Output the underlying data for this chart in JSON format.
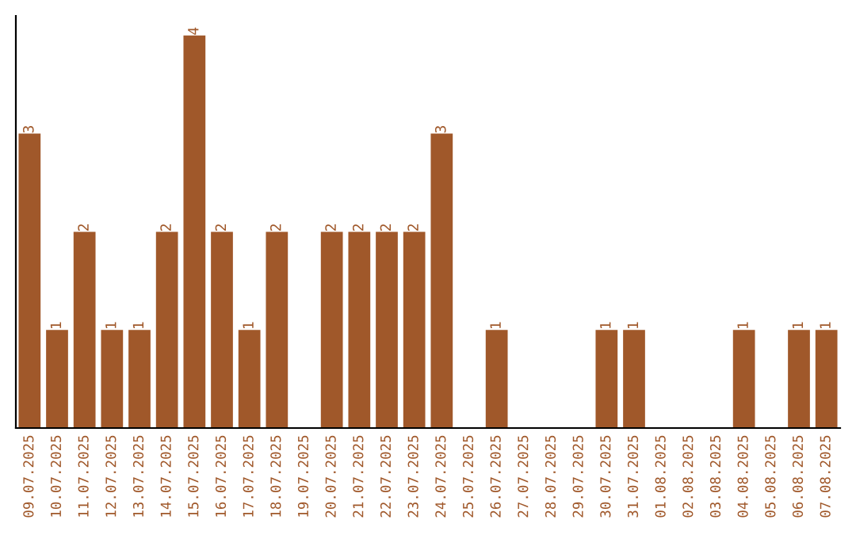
{
  "chart_data": {
    "type": "bar",
    "categories": [
      "09.07.2025",
      "10.07.2025",
      "11.07.2025",
      "12.07.2025",
      "13.07.2025",
      "14.07.2025",
      "15.07.2025",
      "16.07.2025",
      "17.07.2025",
      "18.07.2025",
      "19.07.2025",
      "20.07.2025",
      "21.07.2025",
      "22.07.2025",
      "23.07.2025",
      "24.07.2025",
      "25.07.2025",
      "26.07.2025",
      "27.07.2025",
      "28.07.2025",
      "29.07.2025",
      "30.07.2025",
      "31.07.2025",
      "01.08.2025",
      "02.08.2025",
      "03.08.2025",
      "04.08.2025",
      "05.08.2025",
      "06.08.2025",
      "07.08.2025"
    ],
    "values": [
      3,
      1,
      2,
      1,
      1,
      2,
      4,
      2,
      1,
      2,
      0,
      2,
      2,
      2,
      2,
      3,
      0,
      1,
      0,
      0,
      0,
      1,
      1,
      0,
      0,
      0,
      1,
      0,
      1,
      1
    ],
    "value_labels": [
      "3",
      "1",
      "2",
      "1",
      "1",
      "2",
      "4",
      "2",
      "1",
      "2",
      null,
      "2",
      "2",
      "2",
      "2",
      "3",
      null,
      "1",
      null,
      null,
      null,
      "1",
      "1",
      null,
      null,
      null,
      "1",
      null,
      "1",
      "1"
    ],
    "color": "#a0582a",
    "tick_labels": "x",
    "grid": false
  }
}
